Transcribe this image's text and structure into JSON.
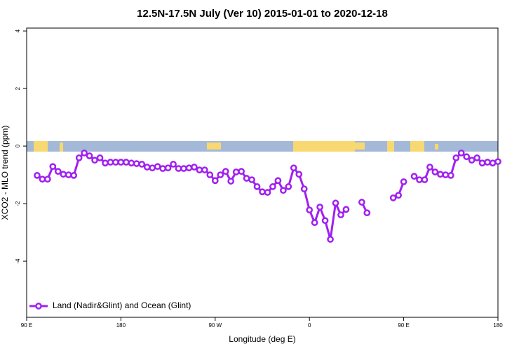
{
  "chart_data": {
    "type": "line",
    "title": "12.5N-17.5N July (Ver 10)   2015-01-01 to 2020-12-18",
    "x_label": "Longitude (deg E)",
    "y_label": "XCO2 - MLO trend (ppm)",
    "x": [
      100,
      105,
      110,
      115,
      120,
      125,
      130,
      135,
      140,
      145,
      150,
      155,
      160,
      165,
      170,
      175,
      180,
      185,
      190,
      195,
      200,
      205,
      210,
      215,
      220,
      225,
      230,
      235,
      240,
      245,
      250,
      255,
      260,
      265,
      270,
      275,
      280,
      285,
      290,
      295,
      300,
      305,
      310,
      315,
      320,
      325,
      330,
      335,
      340,
      345,
      350,
      355,
      360,
      365,
      370,
      375,
      380,
      385,
      390,
      395,
      400,
      405,
      410,
      415,
      420,
      425,
      430,
      435,
      440,
      445,
      450,
      455,
      460,
      465,
      470,
      475,
      480,
      485,
      490,
      495,
      500,
      505,
      510,
      515,
      520,
      525,
      530,
      535,
      540
    ],
    "series": [
      {
        "name": "Land (Nadir&Glint) and Ocean (Glint)",
        "color": "#a020f0",
        "values": [
          -1.02,
          -1.15,
          -1.15,
          -0.71,
          -0.88,
          -0.98,
          -1.0,
          -1.02,
          -0.41,
          -0.24,
          -0.34,
          -0.49,
          -0.41,
          -0.59,
          -0.56,
          -0.56,
          -0.56,
          -0.56,
          -0.59,
          -0.61,
          -0.63,
          -0.73,
          -0.76,
          -0.71,
          -0.78,
          -0.76,
          -0.63,
          -0.78,
          -0.78,
          -0.76,
          -0.73,
          -0.83,
          -0.83,
          -1.0,
          -1.2,
          -1.0,
          -0.88,
          -1.22,
          -0.9,
          -0.88,
          -1.12,
          -1.17,
          -1.41,
          -1.59,
          -1.61,
          -1.41,
          -1.2,
          -1.54,
          -1.41,
          -0.76,
          -0.98,
          -1.49,
          -2.22,
          -2.66,
          -2.12,
          -2.59,
          -3.24,
          -1.98,
          -2.39,
          -2.2,
          null,
          null,
          -1.95,
          -2.32,
          null,
          null,
          null,
          null,
          -1.8,
          -1.71,
          -1.24,
          null,
          -1.05,
          -1.17,
          -1.17,
          -0.73,
          -0.9,
          -0.98,
          -1.0,
          -1.02,
          -0.41,
          -0.24,
          -0.37,
          -0.49,
          -0.41,
          -0.59,
          -0.56,
          -0.59,
          -0.54
        ]
      }
    ],
    "xlim": [
      90,
      540
    ],
    "xticks": [
      {
        "value": 90,
        "label": "90 E"
      },
      180,
      {
        "value": 270,
        "label": "90 W"
      },
      {
        "value": 360,
        "label": "0"
      },
      {
        "value": 450,
        "label": "90 E"
      },
      {
        "value": 540,
        "label": "180"
      }
    ],
    "ylim": [
      -5.95,
      4.1
    ],
    "yticks": [
      4,
      2,
      0,
      -2,
      -4
    ],
    "legend": "bottom-left"
  }
}
